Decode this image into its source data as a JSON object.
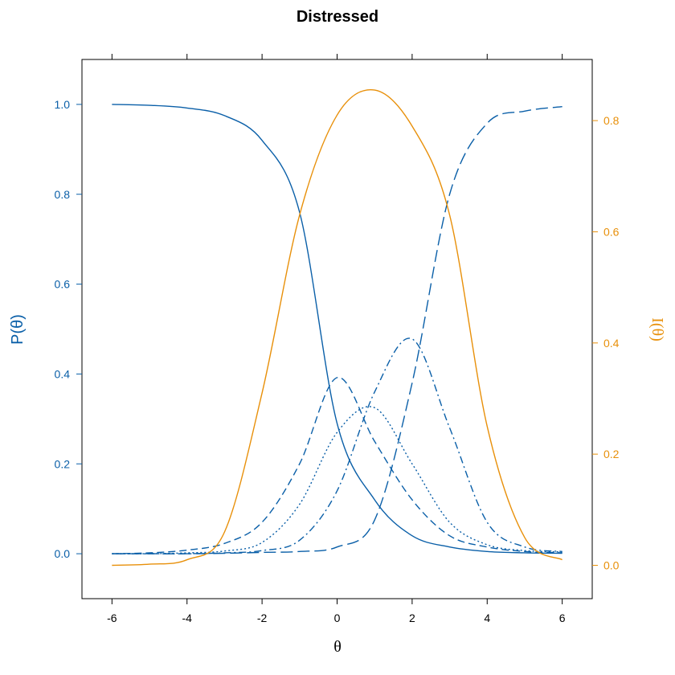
{
  "chart_data": {
    "type": "line",
    "title": "Distressed",
    "xlabel": "θ",
    "ylabel_left": "P(θ)",
    "ylabel_right": "I(θ)",
    "xlim": [
      -6.8,
      6.8
    ],
    "ylim_left": [
      -0.1,
      1.1
    ],
    "ylim_right": [
      -0.06,
      0.91
    ],
    "x_ticks": [
      -6,
      -4,
      -2,
      0,
      2,
      4,
      6
    ],
    "y_ticks_left": [
      0.0,
      0.2,
      0.4,
      0.6,
      0.8,
      1.0
    ],
    "y_ticks_right": [
      0.0,
      0.2,
      0.4,
      0.6,
      0.8
    ],
    "colors": {
      "probability": "#0a5fa8",
      "information": "#e8900a",
      "axes": "#000000"
    },
    "grid": false,
    "x": [
      -6,
      -5,
      -4,
      -3,
      -2,
      -1,
      0,
      1,
      2,
      3,
      4,
      5,
      6
    ],
    "series": [
      {
        "axis": "left",
        "style": "solid",
        "values": [
          1.0,
          0.998,
          0.992,
          0.975,
          0.92,
          0.76,
          0.29,
          0.12,
          0.04,
          0.015,
          0.005,
          0.002,
          0.001
        ]
      },
      {
        "axis": "left",
        "style": "dashed",
        "values": [
          0.0,
          0.002,
          0.008,
          0.023,
          0.07,
          0.2,
          0.392,
          0.25,
          0.12,
          0.04,
          0.015,
          0.005,
          0.002
        ]
      },
      {
        "axis": "left",
        "style": "dotted",
        "values": [
          0.0,
          0.0,
          0.002,
          0.006,
          0.025,
          0.11,
          0.27,
          0.325,
          0.2,
          0.07,
          0.02,
          0.007,
          0.004
        ]
      },
      {
        "axis": "left",
        "style": "dotdash",
        "values": [
          0.0,
          0.0,
          0.0,
          0.002,
          0.007,
          0.03,
          0.14,
          0.36,
          0.478,
          0.28,
          0.07,
          0.015,
          0.005
        ]
      },
      {
        "axis": "left",
        "style": "longdash",
        "values": [
          0.0,
          0.0,
          0.0,
          0.001,
          0.003,
          0.005,
          0.015,
          0.075,
          0.38,
          0.8,
          0.958,
          0.985,
          0.995
        ]
      },
      {
        "axis": "right",
        "style": "solid",
        "values": [
          0.0,
          0.002,
          0.01,
          0.06,
          0.31,
          0.63,
          0.81,
          0.855,
          0.79,
          0.63,
          0.25,
          0.05,
          0.01
        ]
      }
    ]
  }
}
